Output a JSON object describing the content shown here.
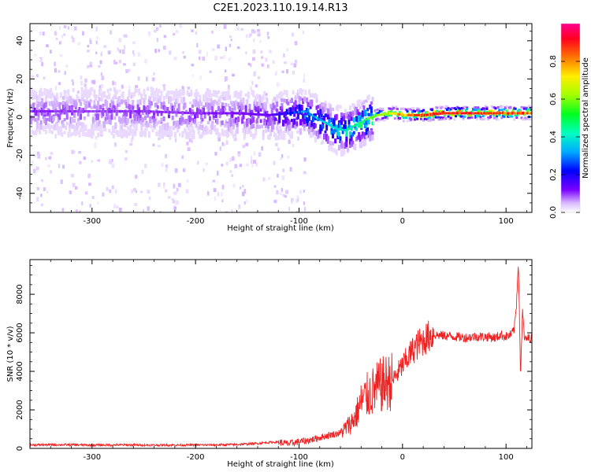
{
  "title": "C2E1.2023.110.19.14.R13",
  "chart_data": [
    {
      "type": "heatmap",
      "title": "C2E1.2023.110.19.14.R13",
      "xlabel": "Height of straight line (km)",
      "ylabel": "Frequency (Hz)",
      "xlim": [
        -360,
        125
      ],
      "ylim": [
        -50,
        49
      ],
      "xticks": [
        -300,
        -200,
        -100,
        0,
        100
      ],
      "xtick_labels": [
        "-300",
        "-200",
        "-100",
        "0",
        "100"
      ],
      "yticks": [
        -40,
        -20,
        0,
        20,
        40
      ],
      "ytick_labels": [
        "-40",
        "-20",
        "0",
        "20",
        "40"
      ],
      "colorbar": {
        "label": "Normalized spectral amplitude",
        "range": [
          0,
          1
        ],
        "ticks": [
          0.0,
          0.2,
          0.4,
          0.6,
          0.8
        ],
        "tick_labels": [
          "0.0",
          "0.2",
          "0.4",
          "0.6",
          "0.8"
        ],
        "colormap": [
          "#ffffff",
          "#c8a0ff",
          "#7a00ff",
          "#0000ff",
          "#00c8ff",
          "#00ff80",
          "#80ff00",
          "#ffff00",
          "#ff8000",
          "#ff0000",
          "#ff0080"
        ]
      },
      "ridge": [
        {
          "x": -360,
          "freq": 3,
          "amplitude": 0.18
        },
        {
          "x": -300,
          "freq": 3,
          "amplitude": 0.16
        },
        {
          "x": -250,
          "freq": 3,
          "amplitude": 0.17
        },
        {
          "x": -200,
          "freq": 2,
          "amplitude": 0.18
        },
        {
          "x": -160,
          "freq": 2,
          "amplitude": 0.2
        },
        {
          "x": -130,
          "freq": 1,
          "amplitude": 0.22
        },
        {
          "x": -110,
          "freq": 2,
          "amplitude": 0.3
        },
        {
          "x": -95,
          "freq": 3,
          "amplitude": 0.38
        },
        {
          "x": -85,
          "freq": 0,
          "amplitude": 0.4
        },
        {
          "x": -75,
          "freq": -3,
          "amplitude": 0.42
        },
        {
          "x": -65,
          "freq": -6,
          "amplitude": 0.45
        },
        {
          "x": -55,
          "freq": -7,
          "amplitude": 0.45
        },
        {
          "x": -45,
          "freq": -4,
          "amplitude": 0.5
        },
        {
          "x": -35,
          "freq": -1,
          "amplitude": 0.55
        },
        {
          "x": -25,
          "freq": 1,
          "amplitude": 0.62
        },
        {
          "x": -10,
          "freq": 2,
          "amplitude": 0.7
        },
        {
          "x": 0,
          "freq": 1,
          "amplitude": 0.8
        },
        {
          "x": 20,
          "freq": 1,
          "amplitude": 0.88
        },
        {
          "x": 40,
          "freq": 2,
          "amplitude": 0.93
        },
        {
          "x": 60,
          "freq": 2,
          "amplitude": 0.93
        },
        {
          "x": 80,
          "freq": 2,
          "amplitude": 0.9
        },
        {
          "x": 100,
          "freq": 2,
          "amplitude": 0.88
        },
        {
          "x": 125,
          "freq": 2,
          "amplitude": 0.85
        }
      ]
    },
    {
      "type": "line",
      "xlabel": "Height of straight line (km)",
      "ylabel": "SNR (10 * v/v)",
      "xlim": [
        -360,
        125
      ],
      "ylim": [
        0,
        9800
      ],
      "xticks": [
        -300,
        -200,
        -100,
        0,
        100
      ],
      "xtick_labels": [
        "-300",
        "-200",
        "-100",
        "0",
        "100"
      ],
      "yticks": [
        0,
        2000,
        4000,
        6000,
        8000
      ],
      "ytick_labels": [
        "0",
        "2000",
        "4000",
        "6000",
        "8000"
      ],
      "color": "#ee2222",
      "x": [
        -360,
        -330,
        -300,
        -270,
        -240,
        -210,
        -180,
        -160,
        -140,
        -130,
        -120,
        -110,
        -100,
        -90,
        -80,
        -70,
        -60,
        -50,
        -45,
        -40,
        -35,
        -30,
        -25,
        -20,
        -15,
        -10,
        -5,
        0,
        5,
        10,
        15,
        20,
        25,
        30,
        40,
        50,
        60,
        70,
        80,
        90,
        95,
        100,
        105,
        108,
        110,
        112,
        114,
        116,
        118,
        120,
        125
      ],
      "y": [
        180,
        190,
        170,
        180,
        170,
        175,
        180,
        200,
        260,
        310,
        330,
        240,
        350,
        420,
        560,
        700,
        800,
        1300,
        1700,
        2400,
        2700,
        2900,
        3100,
        3300,
        3400,
        3500,
        3900,
        4300,
        4700,
        5100,
        5400,
        5600,
        5800,
        5900,
        5850,
        5800,
        5750,
        5800,
        5800,
        5750,
        5900,
        5800,
        5900,
        6200,
        7400,
        9800,
        3800,
        7100,
        5600,
        5700,
        5750
      ]
    }
  ]
}
